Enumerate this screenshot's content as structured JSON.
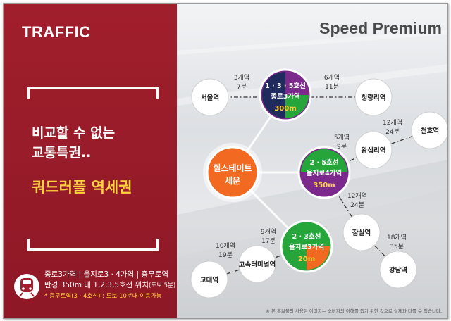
{
  "left": {
    "title": "TRAFFIC",
    "headline_line1": "비교할 수 없는",
    "headline_line2": "교통특권..",
    "highlight": "쿼드러플 역세권",
    "info_line1": "종로3가역 | 을지로3 · 4가역 | 충무로역",
    "info_line2_main": "반경 350m 내 1,2,3,5호선 위치",
    "info_line2_note": "(도보 5분)",
    "info_line3": "* 충무로역(3 · 4호선) : 도보 10분내 이용가능"
  },
  "right": {
    "title": "Speed Premium",
    "footnote": "※ 본 홍보물의 사용된 이미지는 소비자의 이해를 돕기 위한 것으로 실제와 다를 수 있습니다."
  },
  "colors": {
    "red": "#a11f2c",
    "yellow": "#ffd23f",
    "purple": "#7b2a8c",
    "green": "#25a53a",
    "navy": "#1f2b5c",
    "orange": "#f26a21"
  },
  "map": {
    "center": {
      "line1": "힐스테이트",
      "line2": "세운"
    },
    "hubs": {
      "jongno": {
        "lines": "1 · 3 · 5호선",
        "name": "종로3가역",
        "dist": "300m"
      },
      "euljiro4": {
        "lines": "2 · 5호선",
        "name": "을지로4가역",
        "dist": "350m"
      },
      "euljiro3": {
        "lines": "2 · 3호선",
        "name": "을지로3가역",
        "dist": "20m"
      }
    },
    "stations": {
      "seoul": "서울역",
      "cheongnyangni": "청량리역",
      "cheonho": "천호역",
      "wangsimni": "왕십리역",
      "jamsil": "잠실역",
      "gangnam": "강남역",
      "gyodae": "교대역",
      "express": "고속터미널역"
    },
    "times": {
      "seoul": {
        "stops": "3개역",
        "min": "7분"
      },
      "cheongnyangni": {
        "stops": "6개역",
        "min": "11분"
      },
      "cheonho": {
        "stops": "12개역",
        "min": "24분"
      },
      "wangsimni": {
        "stops": "5개역",
        "min": "9분"
      },
      "jamsil": {
        "stops": "12개역",
        "min": "24분"
      },
      "gangnam": {
        "stops": "18개역",
        "min": "35분"
      },
      "express": {
        "stops": "9개역",
        "min": "17분"
      },
      "gyodae": {
        "stops": "10개역",
        "min": "19분"
      }
    }
  }
}
